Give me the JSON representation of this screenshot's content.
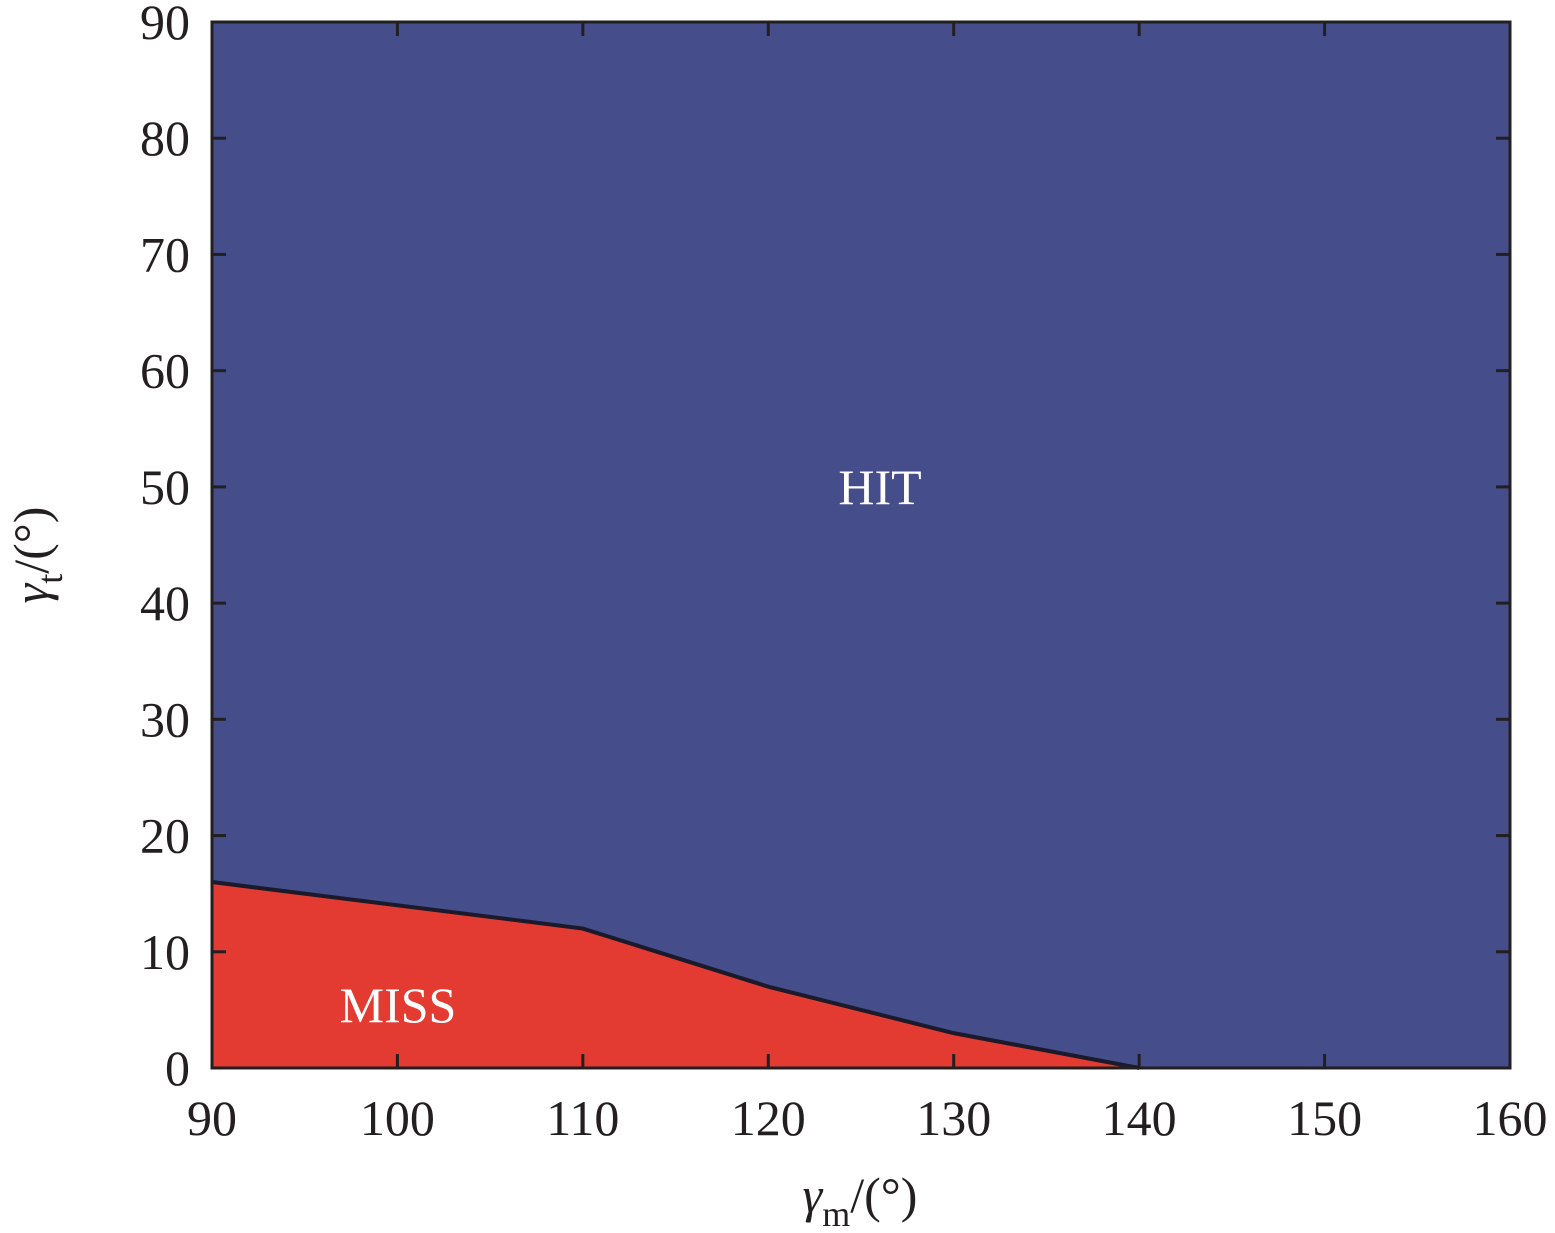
{
  "chart_data": {
    "type": "area",
    "x": [
      90,
      110,
      120,
      130,
      140
    ],
    "series": [
      {
        "name": "MISS",
        "color": "#e33a32",
        "values": [
          16,
          12,
          7,
          3,
          0
        ]
      }
    ],
    "area_above": {
      "label": "HIT",
      "color": "#454d8b"
    },
    "xlim": [
      90,
      160
    ],
    "xticks": [
      90,
      100,
      110,
      120,
      130,
      140,
      150,
      160
    ],
    "ylim": [
      0,
      90
    ],
    "yticks": [
      0,
      10,
      20,
      30,
      40,
      50,
      60,
      70,
      80,
      90
    ],
    "x_label": {
      "symbol": "γ",
      "subscript": "m",
      "unit": "/(°)"
    },
    "y_label": {
      "symbol": "γ",
      "subscript": "t",
      "unit": "/(°)"
    }
  }
}
